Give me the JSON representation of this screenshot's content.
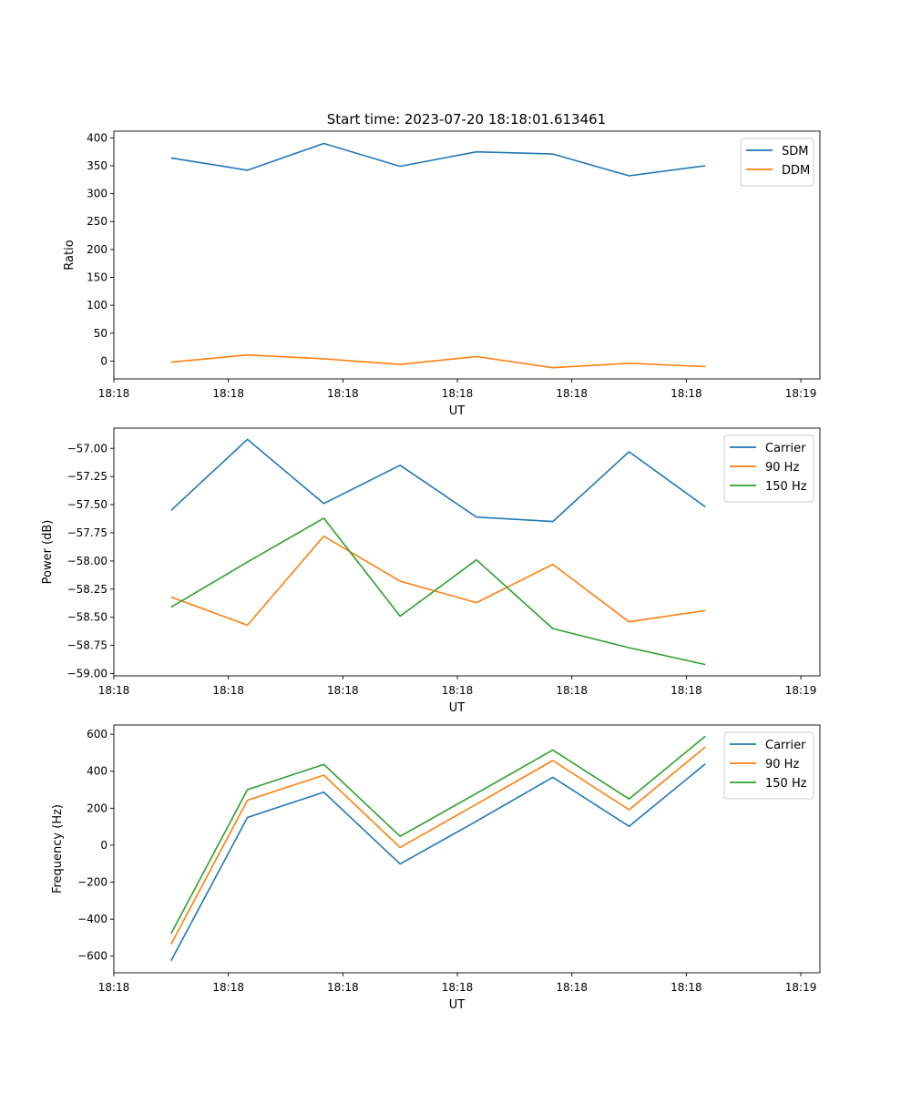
{
  "figure_title": "Start time: 2023-07-20 18:18:01.613461",
  "colors": {
    "series1": "#1f77b4",
    "series2": "#ff7f0e",
    "series3": "#2ca02c",
    "axis": "#000000"
  },
  "chart_data": [
    {
      "type": "line",
      "title": "Start time: 2023-07-20 18:18:01.613461",
      "xlabel": "UT",
      "ylabel": "Ratio",
      "xlim": [
        -0.75,
        8.5
      ],
      "ylim": [
        -32,
        412
      ],
      "x": [
        0,
        1,
        2,
        3,
        4,
        5,
        6,
        7
      ],
      "x_ticks": [
        {
          "v": -0.75,
          "label": "18:18"
        },
        {
          "v": 0.75,
          "label": "18:18"
        },
        {
          "v": 2.25,
          "label": "18:18"
        },
        {
          "v": 3.75,
          "label": "18:18"
        },
        {
          "v": 5.25,
          "label": "18:18"
        },
        {
          "v": 6.75,
          "label": "18:18"
        },
        {
          "v": 8.25,
          "label": "18:19"
        }
      ],
      "y_ticks": [
        0,
        50,
        100,
        150,
        200,
        250,
        300,
        350,
        400
      ],
      "y_decimals": 0,
      "legend_position": "top-right",
      "series": [
        {
          "name": "SDM",
          "color": "#1f77b4",
          "values": [
            364,
            342,
            390,
            349,
            375,
            371,
            332,
            350
          ]
        },
        {
          "name": "DDM",
          "color": "#ff7f0e",
          "values": [
            -2,
            11,
            4,
            -6,
            8,
            -12,
            -4,
            -10
          ]
        }
      ]
    },
    {
      "type": "line",
      "title": "",
      "xlabel": "UT",
      "ylabel": "Power (dB)",
      "xlim": [
        -0.75,
        8.5
      ],
      "ylim": [
        -59.02,
        -56.82
      ],
      "x": [
        0,
        1,
        2,
        3,
        4,
        5,
        6,
        7
      ],
      "x_ticks": [
        {
          "v": -0.75,
          "label": "18:18"
        },
        {
          "v": 0.75,
          "label": "18:18"
        },
        {
          "v": 2.25,
          "label": "18:18"
        },
        {
          "v": 3.75,
          "label": "18:18"
        },
        {
          "v": 5.25,
          "label": "18:18"
        },
        {
          "v": 6.75,
          "label": "18:18"
        },
        {
          "v": 8.25,
          "label": "18:19"
        }
      ],
      "y_ticks": [
        -59.0,
        -58.75,
        -58.5,
        -58.25,
        -58.0,
        -57.75,
        -57.5,
        -57.25,
        -57.0
      ],
      "y_decimals": 2,
      "legend_position": "top-right",
      "series": [
        {
          "name": "Carrier",
          "color": "#1f77b4",
          "values": [
            -57.55,
            -56.92,
            -57.49,
            -57.15,
            -57.61,
            -57.65,
            -57.03,
            -57.52
          ]
        },
        {
          "name": "90 Hz",
          "color": "#ff7f0e",
          "values": [
            -58.32,
            -58.57,
            -57.78,
            -58.18,
            -58.37,
            -58.03,
            -58.54,
            -58.44
          ]
        },
        {
          "name": "150 Hz",
          "color": "#2ca02c",
          "values": [
            -58.41,
            -58.01,
            -57.62,
            -58.49,
            -57.99,
            -58.6,
            -58.77,
            -58.92
          ]
        }
      ]
    },
    {
      "type": "line",
      "title": "",
      "xlabel": "UT",
      "ylabel": "Frequency (Hz)",
      "xlim": [
        -0.75,
        8.5
      ],
      "ylim": [
        -690,
        650
      ],
      "x": [
        0,
        1,
        2,
        3,
        4,
        5,
        6,
        7
      ],
      "x_ticks": [
        {
          "v": -0.75,
          "label": "18:18"
        },
        {
          "v": 0.75,
          "label": "18:18"
        },
        {
          "v": 2.25,
          "label": "18:18"
        },
        {
          "v": 3.75,
          "label": "18:18"
        },
        {
          "v": 5.25,
          "label": "18:18"
        },
        {
          "v": 6.75,
          "label": "18:18"
        },
        {
          "v": 8.25,
          "label": "18:19"
        }
      ],
      "y_ticks": [
        -600,
        -400,
        -200,
        0,
        200,
        400,
        600
      ],
      "y_decimals": 0,
      "legend_position": "top-right",
      "series": [
        {
          "name": "Carrier",
          "color": "#1f77b4",
          "values": [
            -625,
            150,
            287,
            -102,
            130,
            367,
            102,
            440
          ]
        },
        {
          "name": "90 Hz",
          "color": "#ff7f0e",
          "values": [
            -535,
            243,
            379,
            -12,
            222,
            458,
            192,
            532
          ]
        },
        {
          "name": "150 Hz",
          "color": "#2ca02c",
          "values": [
            -478,
            300,
            437,
            48,
            280,
            515,
            250,
            590
          ]
        }
      ]
    }
  ]
}
